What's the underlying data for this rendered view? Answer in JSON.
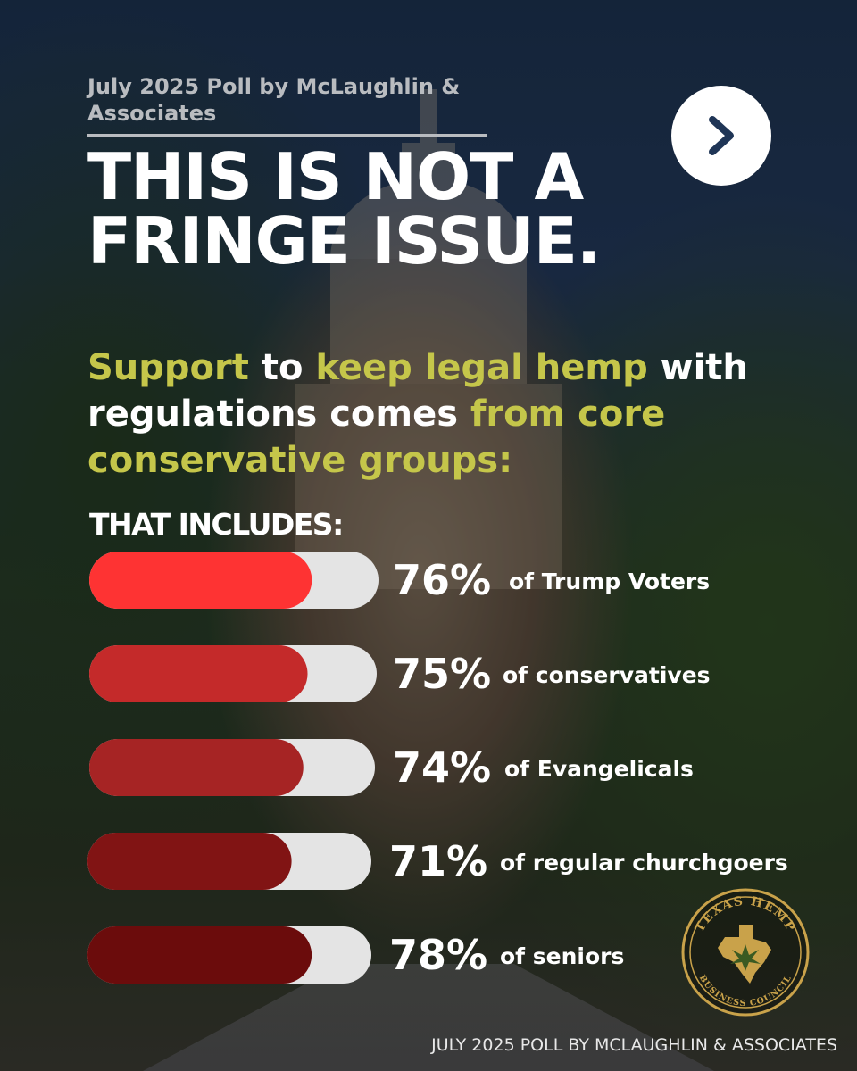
{
  "header": {
    "kicker": "July 2025 Poll by McLaughlin & Associates",
    "headline": "THIS IS NOT A FRINGE ISSUE.",
    "next_icon": "chevron-right-icon"
  },
  "subheading": {
    "parts": [
      {
        "text": "Support",
        "highlight": true
      },
      {
        "text": " to ",
        "highlight": false
      },
      {
        "text": "keep legal hemp",
        "highlight": true
      },
      {
        "text": " with regulations comes ",
        "highlight": false
      },
      {
        "text": "from core conservative groups:",
        "highlight": true
      }
    ],
    "highlight_color": "#c5c64a"
  },
  "includes_label": "THAT INCLUDES:",
  "chart_data": {
    "type": "bar",
    "orientation": "horizontal",
    "categories": [
      "of Trump Voters",
      "of conservatives",
      "of Evangelicals",
      "of regular churchgoers",
      "of seniors"
    ],
    "values": [
      76,
      75,
      74,
      71,
      78
    ],
    "value_labels": [
      "76%",
      "75%",
      "74%",
      "71%",
      "78%"
    ],
    "xlim": [
      0,
      100
    ],
    "bar_colors": [
      "#fe3333",
      "#c42a2a",
      "#a62424",
      "#811414",
      "#6b0c0c"
    ],
    "track_color": "#e4e4e4"
  },
  "footer": "JULY 2025 POLL BY MCLAUGHLIN & ASSOCIATES",
  "logo": {
    "name": "texas-hemp-business-council-logo",
    "text_top": "TEXAS HEMP",
    "text_bottom": "BUSINESS COUNCIL",
    "color": "#c9a24a"
  }
}
